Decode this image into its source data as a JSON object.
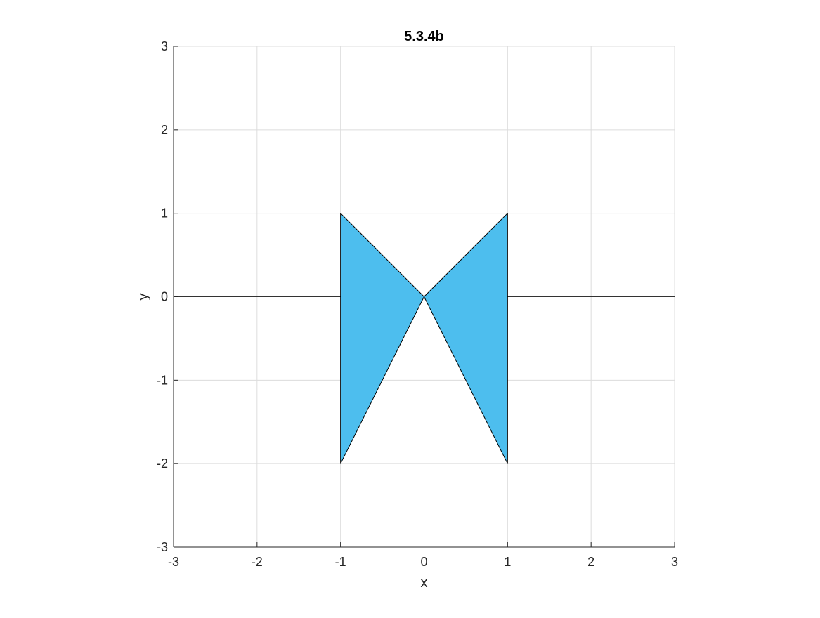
{
  "chart_data": {
    "type": "area",
    "title": "5.3.4b",
    "xlabel": "x",
    "ylabel": "y",
    "xlim": [
      -3,
      3
    ],
    "ylim": [
      -3,
      3
    ],
    "xticks": [
      -3,
      -2,
      -1,
      0,
      1,
      2,
      3
    ],
    "yticks": [
      -3,
      -2,
      -1,
      0,
      1,
      2,
      3
    ],
    "grid": true,
    "show_origin_lines": true,
    "polygons": [
      {
        "vertices": [
          [
            -1,
            1
          ],
          [
            0,
            0
          ],
          [
            -1,
            -2
          ]
        ]
      },
      {
        "vertices": [
          [
            1,
            1
          ],
          [
            0,
            0
          ],
          [
            1,
            -2
          ]
        ]
      }
    ],
    "colors": {
      "fill": "#4DBEEE",
      "edge": "#000000",
      "grid": "#dcdcdc",
      "axis": "#262626",
      "origin_line": "#333333"
    }
  }
}
